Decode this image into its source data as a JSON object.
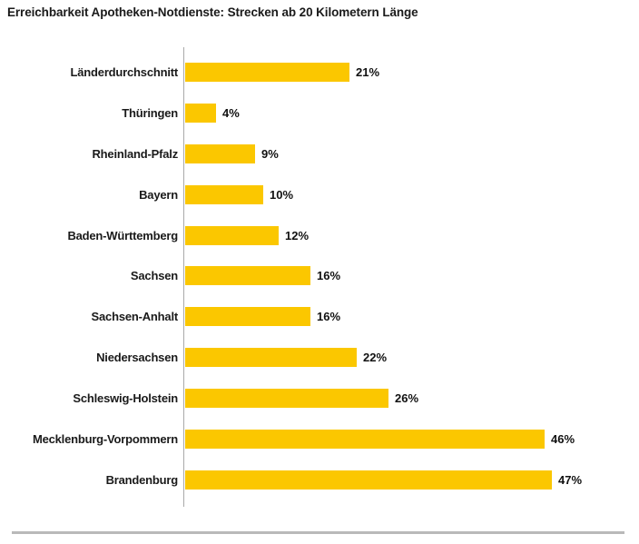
{
  "chart_data": {
    "type": "bar",
    "orientation": "horizontal",
    "title": "Erreichbarkeit Apotheken-Notdienste: Strecken ab 20 Kilometern Länge",
    "categories": [
      "Länderdurchschnitt",
      "Thüringen",
      "Rheinland-Pfalz",
      "Bayern",
      "Baden-Württemberg",
      "Sachsen",
      "Sachsen-Anhalt",
      "Niedersachsen",
      "Schleswig-Holstein",
      "Mecklenburg-Vorpommern",
      "Brandenburg"
    ],
    "values": [
      21,
      4,
      9,
      10,
      12,
      16,
      16,
      22,
      26,
      46,
      47
    ],
    "value_labels": [
      "21%",
      "4%",
      "9%",
      "10%",
      "12%",
      "16%",
      "16%",
      "22%",
      "26%",
      "46%",
      "47%"
    ],
    "unit": "%",
    "xlim": [
      0,
      50
    ],
    "bar_color": "#FBC700",
    "axis_color": "#A9A9A9",
    "grid": false,
    "legend": false
  }
}
